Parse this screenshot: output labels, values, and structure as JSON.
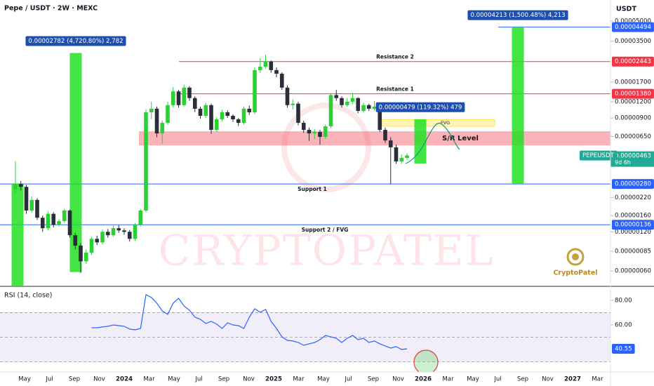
{
  "chart_data": [
    {
      "type": "candlestick",
      "title": "Pepe / USDT · 2W · MEXC",
      "currency": "USDT",
      "symbol": "PEPEUSDT",
      "countdown": "9d 6h",
      "watermark": "CRYPTOPATEL",
      "logo": "CryptoPatel",
      "log_scale": true,
      "grid": false,
      "up_color": "#2bd134",
      "down_color": "#2a2e39",
      "ylim": [
        4.63e-07,
        7.26e-05
      ],
      "yticks": [
        {
          "value": 5e-05,
          "label": "0.00005000"
        },
        {
          "value": 3.5e-05,
          "label": "0.00003500"
        },
        {
          "value": 1.7e-05,
          "label": "0.00001700"
        },
        {
          "value": 1.2e-05,
          "label": "0.00001200"
        },
        {
          "value": 9e-06,
          "label": "0.00000900"
        },
        {
          "value": 6.5e-06,
          "label": "0.00000650"
        },
        {
          "value": 2.2e-06,
          "label": "0.00000220"
        },
        {
          "value": 1.6e-06,
          "label": "0.00000160"
        },
        {
          "value": 1.2e-06,
          "label": "0.00000120"
        },
        {
          "value": 8.5e-07,
          "label": "0.00000085"
        },
        {
          "value": 6e-07,
          "label": "0.00000060"
        }
      ],
      "x_labels": [
        "May",
        "Jul",
        "Sep",
        "Nov",
        "2024",
        "Mar",
        "May",
        "Jul",
        "Sep",
        "Nov",
        "2025",
        "Mar",
        "May",
        "Jul",
        "Sep",
        "Nov",
        "2026",
        "Mar",
        "May",
        "Jul",
        "Sep",
        "Nov",
        "2027",
        "Mar"
      ],
      "open": [
        2.54e-06,
        2.8e-06,
        2.66e-06,
        1.75e-06,
        2.11e-06,
        1.54e-06,
        1.28e-06,
        1.65e-06,
        1.36e-06,
        1.45e-06,
        1.75e-06,
        1.13e-06,
        9.4e-07,
        7.12e-07,
        8.3e-07,
        1.06e-06,
        9.96e-07,
        1.2e-06,
        1.13e-06,
        1.28e-06,
        1.23e-06,
        1.2e-06,
        1.06e-06,
        1.36e-06,
        1.75e-06,
        9.95e-06,
        1.06e-05,
        6.85e-06,
        8.26e-06,
        1.13e-05,
        1.44e-05,
        1.13e-05,
        1.54e-05,
        1.28e-05,
        1.06e-05,
        9.35e-06,
        1.13e-05,
        7.29e-06,
        8.79e-06,
        9.95e-06,
        9.35e-06,
        8.79e-06,
        8.26e-06,
        1.06e-05,
        9.95e-06,
        2.1e-05,
        2.23e-05,
        2.44e-05,
        2.1e-05,
        1.97e-05,
        1.54e-05,
        1.13e-05,
        1.16e-05,
        8.26e-06,
        7.29e-06,
        6.85e-06,
        7.03e-06,
        6.44e-06,
        7.76e-06,
        1.35e-05,
        1.28e-05,
        1.13e-05,
        1.2e-05,
        1.28e-05,
        1.02e-05,
        1.13e-05,
        1.06e-05,
        1.1e-05,
        7.29e-06,
        6.05e-06,
        5.35e-06,
        4.17e-06,
        4.44e-06
      ],
      "high": [
        4.2e-06,
        2.95e-06,
        2.75e-06,
        2.25e-06,
        2.18e-06,
        1.6e-06,
        1.72e-06,
        1.7e-06,
        1.5e-06,
        1.8e-06,
        1.78e-06,
        1.18e-06,
        9.8e-07,
        8.8e-07,
        1.1e-06,
        1.12e-06,
        1.25e-06,
        1.26e-06,
        1.34e-06,
        1.35e-06,
        1.28e-06,
        1.24e-06,
        1.4e-06,
        1.8e-06,
        1.05e-05,
        1.2e-05,
        1.1e-05,
        8.6e-06,
        1.2e-05,
        1.55e-05,
        1.48e-05,
        1.62e-05,
        1.58e-05,
        1.32e-05,
        1.1e-05,
        1.18e-05,
        1.16e-05,
        9.1e-06,
        1.04e-05,
        1.03e-05,
        9.6e-06,
        9e-06,
        1.1e-05,
        1.12e-05,
        2.2e-05,
        2.6e-05,
        2.75e-05,
        2.5e-05,
        2.2e-05,
        2.02e-05,
        1.6e-05,
        1.25e-05,
        1.2e-05,
        8.6e-06,
        7.6e-06,
        7.4e-06,
        7.3e-06,
        8e-06,
        1.4e-05,
        1.48e-05,
        1.32e-05,
        1.28e-05,
        1.4e-05,
        1.3e-05,
        1.18e-05,
        1.16e-05,
        1.22e-05,
        1.14e-05,
        7.6e-06,
        6.4e-06,
        5.6e-06,
        4.7e-06,
        4.8e-06
      ],
      "low": [
        2.35e-06,
        2.5e-06,
        1.65e-06,
        1.68e-06,
        1.48e-06,
        1.2e-06,
        1.24e-06,
        1.3e-06,
        1.32e-06,
        1.4e-06,
        1.08e-06,
        8.8e-07,
        5.8e-07,
        6.8e-07,
        8e-07,
        9.5e-07,
        9.6e-07,
        1.08e-06,
        1.1e-06,
        1.18e-06,
        1.14e-06,
        1.01e-06,
        1.02e-06,
        1.32e-06,
        1.7e-06,
        8.8e-06,
        6.4e-06,
        5.7e-06,
        8e-06,
        1.08e-05,
        1.08e-05,
        1.1e-05,
        1.22e-05,
        1e-05,
        8.9e-06,
        9e-06,
        6.8e-06,
        7e-06,
        8.5e-06,
        9e-06,
        8.4e-06,
        7.8e-06,
        8e-06,
        9.5e-06,
        9.6e-06,
        2e-05,
        2.15e-05,
        2e-05,
        1.85e-05,
        1.48e-05,
        1.08e-05,
        1.05e-05,
        7.9e-06,
        6.9e-06,
        6e-06,
        6.2e-06,
        5.6e-06,
        6.2e-06,
        7.5e-06,
        1.22e-05,
        1.08e-05,
        1.1e-05,
        1.15e-05,
        9.8e-06,
        9.9e-06,
        1.02e-05,
        1.03e-05,
        7e-06,
        5.8e-06,
        2.8e-06,
        4e-06,
        4e-06,
        4.3e-06
      ],
      "close": [
        2.8e-06,
        2.66e-06,
        1.75e-06,
        2.11e-06,
        1.54e-06,
        1.28e-06,
        1.65e-06,
        1.36e-06,
        1.45e-06,
        1.75e-06,
        1.13e-06,
        9.4e-07,
        7.12e-07,
        8.3e-07,
        1.06e-06,
        9.96e-07,
        1.2e-06,
        1.13e-06,
        1.28e-06,
        1.23e-06,
        1.2e-06,
        1.06e-06,
        1.36e-06,
        1.75e-06,
        9.95e-06,
        1.06e-05,
        6.85e-06,
        8.26e-06,
        1.13e-05,
        1.44e-05,
        1.13e-05,
        1.54e-05,
        1.28e-05,
        1.06e-05,
        9.35e-06,
        1.13e-05,
        7.29e-06,
        8.79e-06,
        9.95e-06,
        9.35e-06,
        8.79e-06,
        8.26e-06,
        1.06e-05,
        9.95e-06,
        2.1e-05,
        2.23e-05,
        2.44e-05,
        2.1e-05,
        1.97e-05,
        1.54e-05,
        1.13e-05,
        1.16e-05,
        8.26e-06,
        7.29e-06,
        6.85e-06,
        7.03e-06,
        6.44e-06,
        7.76e-06,
        1.35e-05,
        1.28e-05,
        1.13e-05,
        1.2e-05,
        1.28e-05,
        1.02e-05,
        1.13e-05,
        1.06e-05,
        1.1e-05,
        7.29e-06,
        6.05e-06,
        5.35e-06,
        4.17e-06,
        4.44e-06,
        4.63e-06
      ],
      "last_price": {
        "value": 4.63e-06,
        "label": "0.00000463",
        "color": "#22ab94"
      },
      "levels": [
        {
          "value": 4.494e-05,
          "label": "0.00004494",
          "color": "#2962ff"
        },
        {
          "value": 2.443e-05,
          "label": "0.00002443",
          "name": "Resistance 2",
          "color": "#f23645"
        },
        {
          "value": 1.38e-05,
          "label": "0.00001380",
          "name": "Resistance 1",
          "color": "#f23645"
        },
        {
          "value": 2.8e-06,
          "label": "0.00000280",
          "name": "Support 1",
          "color": "#2962ff"
        },
        {
          "value": 1.36e-06,
          "label": "0.00000136",
          "name": "Support 2 / FVG",
          "color": "#2962ff"
        }
      ],
      "zones": [
        {
          "name": "S/R Level",
          "from": 5.53e-06,
          "to": 7.11e-06,
          "color": "#f23645"
        },
        {
          "name": "FVG",
          "from": 7.76e-06,
          "to": 8.74e-06,
          "color": "#ffe45c"
        }
      ],
      "measurements": [
        {
          "from": 4.63e-07,
          "to": 2.8e-06,
          "color": "#22e022"
        },
        {
          "from": 5.89e-07,
          "to": 2.841e-05,
          "label": "0.00002782 (4,720.80%) 2,782",
          "color": "#22e022"
        },
        {
          "from": 4.02e-06,
          "to": 8.81e-06,
          "label": "0.00000479 (119.32%) 479",
          "color": "#22e022"
        },
        {
          "from": 2.8e-06,
          "to": 4.494e-05,
          "label": "0.00004213 (1,500.48%) 4,213",
          "color": "#22e022"
        }
      ]
    },
    {
      "type": "line",
      "title": "RSI (14, close)",
      "color": "#2962ff",
      "ylim": [
        21.7,
        91.4
      ],
      "yticks": [
        {
          "value": 80,
          "label": "80.00"
        },
        {
          "value": 60,
          "label": "60.00"
        }
      ],
      "levels": [
        70,
        50,
        30
      ],
      "values": [
        null,
        null,
        null,
        null,
        null,
        null,
        null,
        null,
        null,
        null,
        null,
        null,
        null,
        null,
        57.7,
        57.7,
        58.3,
        58.9,
        60.0,
        59.4,
        58.9,
        56.6,
        56.0,
        57.1,
        84.6,
        82.3,
        77.7,
        71.4,
        68.6,
        77.7,
        81.7,
        75.4,
        72.0,
        66.3,
        64.6,
        61.1,
        62.9,
        60.6,
        57.1,
        61.7,
        60.0,
        59.4,
        57.1,
        66.3,
        73.1,
        70.3,
        72.6,
        62.9,
        57.1,
        50.3,
        47.4,
        46.9,
        45.7,
        43.4,
        44.6,
        45.7,
        48.0,
        51.4,
        50.3,
        49.1,
        45.7,
        49.1,
        51.4,
        48.0,
        49.1,
        45.7,
        46.9,
        44.6,
        42.9,
        41.1,
        42.3,
        40.0,
        40.55
      ],
      "value_labels": {
        "72": "40.55"
      }
    }
  ]
}
